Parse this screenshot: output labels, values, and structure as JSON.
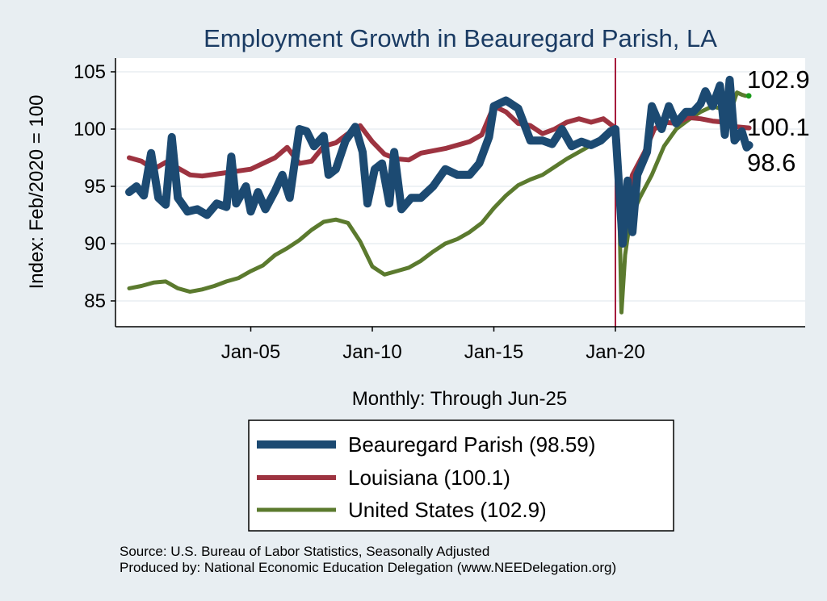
{
  "chart_data": {
    "type": "line",
    "title": "Employment Growth in Beauregard Parish, LA",
    "xlabel": "Monthly: Through Jun-25",
    "ylabel": "Index: Feb/2020 = 100",
    "ylim": [
      83,
      106.5
    ],
    "xlim": [
      2000.0,
      2028.0
    ],
    "x_ticks": [
      {
        "value": 2005,
        "label": "Jan-05"
      },
      {
        "value": 2010,
        "label": "Jan-10"
      },
      {
        "value": 2015,
        "label": "Jan-15"
      },
      {
        "value": 2020,
        "label": "Jan-20"
      }
    ],
    "y_ticks": [
      85,
      90,
      95,
      100,
      105
    ],
    "grid": "horizontal",
    "reference_line": {
      "x": 2020.0,
      "color": "#a61c3c"
    },
    "legend_position": "bottom",
    "series": [
      {
        "name": "Beauregard Parish  (98.59)",
        "color": "#1c4a72",
        "end_label": "98.6",
        "points": [
          [
            2000.0,
            94.5
          ],
          [
            2000.3,
            95.0
          ],
          [
            2000.6,
            94.2
          ],
          [
            2000.9,
            97.9
          ],
          [
            2001.2,
            94.0
          ],
          [
            2001.5,
            93.4
          ],
          [
            2001.75,
            99.3
          ],
          [
            2002.0,
            94.0
          ],
          [
            2002.4,
            92.8
          ],
          [
            2002.8,
            93.0
          ],
          [
            2003.2,
            92.5
          ],
          [
            2003.6,
            93.5
          ],
          [
            2004.0,
            93.2
          ],
          [
            2004.2,
            97.6
          ],
          [
            2004.4,
            93.5
          ],
          [
            2004.8,
            95.0
          ],
          [
            2005.0,
            92.8
          ],
          [
            2005.3,
            94.5
          ],
          [
            2005.6,
            93.0
          ],
          [
            2006.0,
            94.6
          ],
          [
            2006.3,
            96.0
          ],
          [
            2006.6,
            94.0
          ],
          [
            2007.0,
            100.0
          ],
          [
            2007.3,
            99.8
          ],
          [
            2007.6,
            98.5
          ],
          [
            2008.0,
            99.4
          ],
          [
            2008.2,
            96.0
          ],
          [
            2008.5,
            96.5
          ],
          [
            2008.9,
            99.0
          ],
          [
            2009.3,
            100.2
          ],
          [
            2009.6,
            98.0
          ],
          [
            2009.8,
            93.5
          ],
          [
            2010.1,
            96.5
          ],
          [
            2010.4,
            97.0
          ],
          [
            2010.7,
            93.5
          ],
          [
            2010.9,
            98.0
          ],
          [
            2011.2,
            93.0
          ],
          [
            2011.6,
            94.0
          ],
          [
            2012.0,
            94.0
          ],
          [
            2012.5,
            95.0
          ],
          [
            2013.0,
            96.5
          ],
          [
            2013.5,
            96.0
          ],
          [
            2014.0,
            96.0
          ],
          [
            2014.4,
            97.0
          ],
          [
            2014.8,
            99.3
          ],
          [
            2015.0,
            102.0
          ],
          [
            2015.5,
            102.5
          ],
          [
            2016.0,
            101.8
          ],
          [
            2016.5,
            99.0
          ],
          [
            2017.0,
            99.0
          ],
          [
            2017.4,
            98.7
          ],
          [
            2017.8,
            100.0
          ],
          [
            2018.2,
            98.5
          ],
          [
            2018.6,
            98.9
          ],
          [
            2019.0,
            98.6
          ],
          [
            2019.4,
            99.0
          ],
          [
            2019.8,
            99.8
          ],
          [
            2020.0,
            100.0
          ],
          [
            2020.15,
            95.0
          ],
          [
            2020.3,
            90.0
          ],
          [
            2020.5,
            95.5
          ],
          [
            2020.7,
            91.0
          ],
          [
            2020.9,
            96.0
          ],
          [
            2021.3,
            98.0
          ],
          [
            2021.5,
            102.0
          ],
          [
            2021.9,
            100.0
          ],
          [
            2022.2,
            102.0
          ],
          [
            2022.5,
            100.5
          ],
          [
            2022.9,
            101.5
          ],
          [
            2023.2,
            101.5
          ],
          [
            2023.5,
            102.2
          ],
          [
            2023.7,
            103.3
          ],
          [
            2024.0,
            102.0
          ],
          [
            2024.3,
            103.8
          ],
          [
            2024.5,
            99.5
          ],
          [
            2024.7,
            104.3
          ],
          [
            2024.9,
            99.0
          ],
          [
            2025.2,
            99.8
          ],
          [
            2025.4,
            98.4
          ],
          [
            2025.5,
            98.59
          ]
        ]
      },
      {
        "name": "Louisiana (100.1)",
        "color": "#9d3340",
        "end_label": "100.1",
        "points": [
          [
            2000.0,
            97.5
          ],
          [
            2000.5,
            97.2
          ],
          [
            2001.0,
            96.5
          ],
          [
            2001.5,
            97.1
          ],
          [
            2002.0,
            96.6
          ],
          [
            2002.5,
            96.0
          ],
          [
            2003.0,
            95.9
          ],
          [
            2004.0,
            96.2
          ],
          [
            2005.0,
            96.5
          ],
          [
            2006.0,
            97.5
          ],
          [
            2006.5,
            98.4
          ],
          [
            2007.0,
            97.0
          ],
          [
            2007.5,
            97.2
          ],
          [
            2008.0,
            98.5
          ],
          [
            2008.5,
            98.8
          ],
          [
            2009.0,
            99.6
          ],
          [
            2009.5,
            100.3
          ],
          [
            2010.0,
            98.9
          ],
          [
            2010.5,
            97.8
          ],
          [
            2011.0,
            97.4
          ],
          [
            2011.5,
            97.3
          ],
          [
            2012.0,
            97.9
          ],
          [
            2013.0,
            98.3
          ],
          [
            2014.0,
            98.9
          ],
          [
            2014.5,
            99.5
          ],
          [
            2015.0,
            102.0
          ],
          [
            2015.5,
            101.5
          ],
          [
            2016.0,
            100.5
          ],
          [
            2016.5,
            100.3
          ],
          [
            2017.0,
            99.6
          ],
          [
            2017.5,
            100.0
          ],
          [
            2018.0,
            100.6
          ],
          [
            2018.5,
            100.9
          ],
          [
            2019.0,
            100.6
          ],
          [
            2019.5,
            100.9
          ],
          [
            2020.0,
            100.1
          ],
          [
            2020.1,
            99.0
          ],
          [
            2020.25,
            90.0
          ],
          [
            2020.4,
            93.0
          ],
          [
            2020.7,
            96.0
          ],
          [
            2021.2,
            98.0
          ],
          [
            2021.6,
            100.0
          ],
          [
            2022.0,
            100.6
          ],
          [
            2022.5,
            100.5
          ],
          [
            2023.0,
            101.0
          ],
          [
            2023.5,
            100.9
          ],
          [
            2024.0,
            100.7
          ],
          [
            2024.5,
            100.6
          ],
          [
            2025.0,
            100.2
          ],
          [
            2025.5,
            100.1
          ]
        ]
      },
      {
        "name": "United States (102.9)",
        "color": "#5b7a2e",
        "end_label": "102.9",
        "points": [
          [
            2000.0,
            86.1
          ],
          [
            2000.5,
            86.3
          ],
          [
            2001.0,
            86.6
          ],
          [
            2001.5,
            86.7
          ],
          [
            2002.0,
            86.1
          ],
          [
            2002.5,
            85.8
          ],
          [
            2003.0,
            86.0
          ],
          [
            2003.5,
            86.3
          ],
          [
            2004.0,
            86.7
          ],
          [
            2004.5,
            87.0
          ],
          [
            2005.0,
            87.6
          ],
          [
            2005.5,
            88.1
          ],
          [
            2006.0,
            89.0
          ],
          [
            2006.5,
            89.6
          ],
          [
            2007.0,
            90.3
          ],
          [
            2007.5,
            91.2
          ],
          [
            2008.0,
            91.9
          ],
          [
            2008.5,
            92.1
          ],
          [
            2009.0,
            91.8
          ],
          [
            2009.5,
            90.2
          ],
          [
            2010.0,
            88.0
          ],
          [
            2010.5,
            87.3
          ],
          [
            2011.0,
            87.6
          ],
          [
            2011.5,
            87.9
          ],
          [
            2012.0,
            88.5
          ],
          [
            2012.5,
            89.3
          ],
          [
            2013.0,
            90.0
          ],
          [
            2013.5,
            90.4
          ],
          [
            2014.0,
            91.0
          ],
          [
            2014.5,
            91.8
          ],
          [
            2015.0,
            93.1
          ],
          [
            2015.5,
            94.2
          ],
          [
            2016.0,
            95.1
          ],
          [
            2016.5,
            95.6
          ],
          [
            2017.0,
            96.0
          ],
          [
            2017.5,
            96.7
          ],
          [
            2018.0,
            97.4
          ],
          [
            2018.5,
            98.0
          ],
          [
            2019.0,
            98.6
          ],
          [
            2019.5,
            99.2
          ],
          [
            2020.0,
            100.0
          ],
          [
            2020.1,
            99.4
          ],
          [
            2020.25,
            84.0
          ],
          [
            2020.4,
            89.0
          ],
          [
            2020.6,
            92.0
          ],
          [
            2021.0,
            94.0
          ],
          [
            2021.5,
            96.0
          ],
          [
            2022.0,
            98.5
          ],
          [
            2022.5,
            100.0
          ],
          [
            2023.0,
            100.8
          ],
          [
            2023.5,
            101.5
          ],
          [
            2024.0,
            102.0
          ],
          [
            2024.3,
            101.8
          ],
          [
            2024.6,
            101.5
          ],
          [
            2024.8,
            101.9
          ],
          [
            2025.0,
            103.2
          ],
          [
            2025.2,
            103.0
          ],
          [
            2025.35,
            102.9
          ]
        ]
      }
    ]
  },
  "footer": {
    "source": "Source: U.S. Bureau of Labor Statistics, Seasonally Adjusted",
    "produced_by": "Produced by: National Economic Education Delegation (www.NEEDelegation.org)"
  }
}
